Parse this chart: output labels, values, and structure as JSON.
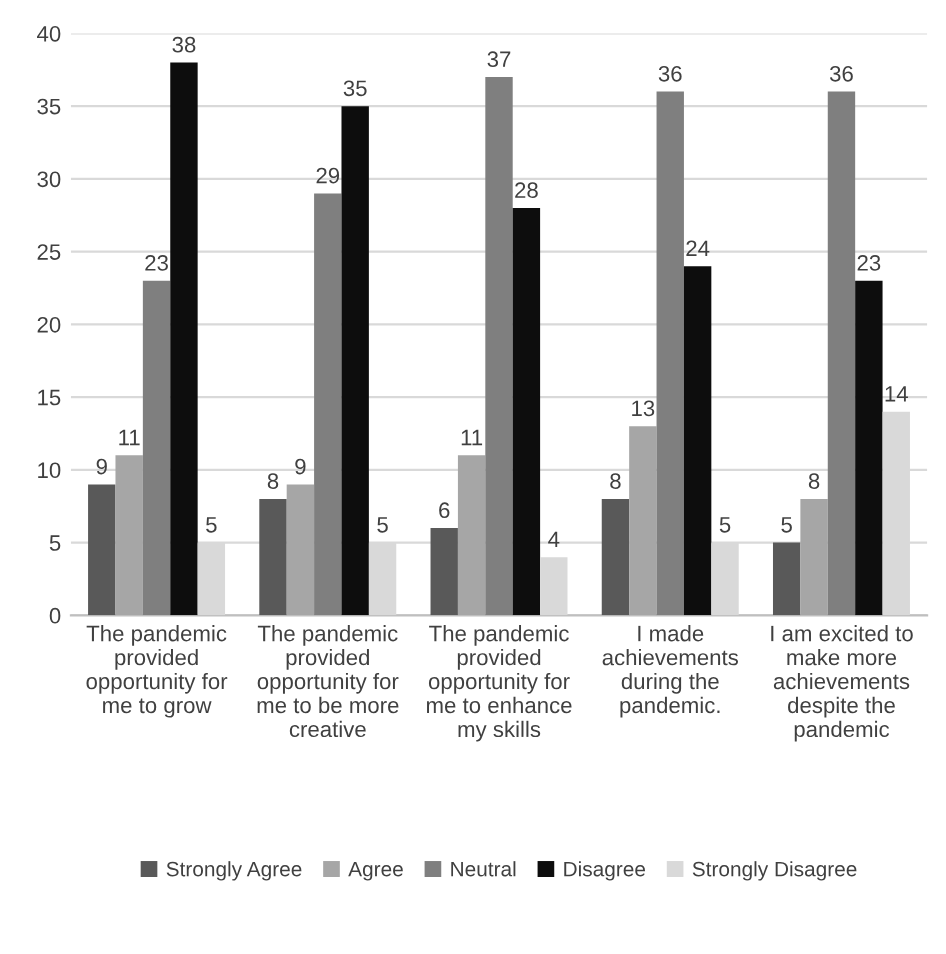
{
  "chart_data": {
    "type": "bar",
    "categories": [
      "The pandemic provided opportunity for me to grow",
      "The pandemic provided opportunity for me to be more creative",
      "The pandemic provided opportunity for me to enhance my skills",
      "I made achievements during the pandemic.",
      "I am excited to make more achievements despite the pandemic"
    ],
    "series": [
      {
        "name": "Strongly Agree",
        "color": "#595959",
        "values": [
          9,
          8,
          6,
          8,
          5
        ]
      },
      {
        "name": "Agree",
        "color": "#a6a6a6",
        "values": [
          11,
          9,
          11,
          13,
          8
        ]
      },
      {
        "name": "Neutral",
        "color": "#7f7f7f",
        "values": [
          23,
          29,
          37,
          36,
          36
        ]
      },
      {
        "name": "Disagree",
        "color": "#0d0d0d",
        "values": [
          38,
          35,
          28,
          24,
          23
        ]
      },
      {
        "name": "Strongly Disagree",
        "color": "#d9d9d9",
        "values": [
          5,
          5,
          4,
          5,
          14
        ]
      }
    ],
    "ylim": [
      0,
      40
    ],
    "yticks": [
      0,
      5,
      10,
      15,
      20,
      25,
      30,
      35,
      40
    ],
    "grid": "y",
    "legend": "bottom",
    "data_labels": true
  }
}
